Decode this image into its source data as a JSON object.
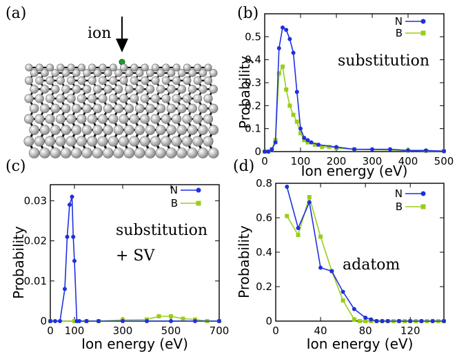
{
  "panel_labels": {
    "a": "(a)",
    "b": "(b)",
    "c": "(c)",
    "d": "(d)"
  },
  "illustration": {
    "ion_label": "ion"
  },
  "colors": {
    "N": "#1f2fe0",
    "B": "#9acd1a"
  },
  "chart_data": [
    {
      "id": "b",
      "type": "line",
      "xlabel": "Ion energy (eV)",
      "ylabel": "Probability",
      "annotation": [
        "substitution"
      ],
      "xlim": [
        0,
        500
      ],
      "ylim": [
        0,
        0.6
      ],
      "xticks": [
        0,
        100,
        200,
        300,
        400,
        500
      ],
      "yticks": [
        0,
        0.1,
        0.2,
        0.3,
        0.4,
        0.5
      ],
      "ytick_labels": [
        "0",
        "0.1",
        "0.2",
        "0.3",
        "0.4",
        "0.5"
      ],
      "legend": "top-right",
      "series": [
        {
          "name": "N",
          "color": "#1f2fe0",
          "marker": "circle",
          "x": [
            0,
            10,
            20,
            30,
            40,
            50,
            60,
            70,
            80,
            90,
            100,
            110,
            120,
            130,
            150,
            200,
            250,
            300,
            350,
            400,
            450,
            500
          ],
          "y": [
            0,
            0,
            0.01,
            0.04,
            0.45,
            0.54,
            0.53,
            0.49,
            0.43,
            0.26,
            0.1,
            0.06,
            0.05,
            0.04,
            0.03,
            0.02,
            0.01,
            0.01,
            0.01,
            0.005,
            0.005,
            0.002
          ]
        },
        {
          "name": "B",
          "color": "#9acd1a",
          "marker": "square",
          "x": [
            0,
            10,
            20,
            30,
            40,
            50,
            60,
            70,
            80,
            90,
            100,
            110,
            120,
            140,
            160,
            180,
            200,
            250,
            400,
            450,
            500
          ],
          "y": [
            0,
            0,
            0.01,
            0.05,
            0.34,
            0.37,
            0.27,
            0.2,
            0.16,
            0.13,
            0.08,
            0.05,
            0.04,
            0.03,
            0.02,
            0.02,
            0.015,
            0.01,
            0.005,
            0.003,
            0.002
          ]
        }
      ]
    },
    {
      "id": "c",
      "type": "line",
      "xlabel": "Ion energy (eV)",
      "ylabel": "Probability",
      "annotation": [
        "substitution",
        "+ SV"
      ],
      "xlim": [
        0,
        700
      ],
      "ylim": [
        0,
        0.034
      ],
      "xticks": [
        0,
        100,
        300,
        500,
        700
      ],
      "xtick_labels": [
        "0",
        "100",
        "300",
        "500",
        "700"
      ],
      "yticks": [
        0,
        0.01,
        0.02,
        0.03
      ],
      "ytick_labels": [
        "0",
        "0.01",
        "0.02",
        "0.03"
      ],
      "legend": "top-right",
      "series": [
        {
          "name": "N",
          "color": "#1f2fe0",
          "marker": "circle",
          "x": [
            0,
            20,
            40,
            60,
            70,
            80,
            90,
            95,
            100,
            110,
            120,
            150,
            200,
            300,
            400,
            500,
            600,
            700
          ],
          "y": [
            0,
            0,
            0,
            0.008,
            0.021,
            0.029,
            0.031,
            0.021,
            0.015,
            0.0,
            0,
            0,
            0,
            0,
            0,
            0,
            0,
            0
          ],
          "note": "N points at 200-700 lie at zero"
        },
        {
          "name": "B",
          "color": "#9acd1a",
          "marker": "square",
          "x": [
            0,
            100,
            150,
            200,
            300,
            400,
            450,
            500,
            550,
            600,
            650,
            700
          ],
          "y": [
            0,
            0,
            0,
            0,
            0.0003,
            0.0004,
            0.0012,
            0.0012,
            0.0006,
            0.0004,
            0,
            0
          ]
        }
      ]
    },
    {
      "id": "d",
      "type": "line",
      "xlabel": "Ion energy (eV)",
      "ylabel": "Probability",
      "annotation": [
        "adatom"
      ],
      "xlim": [
        0,
        150
      ],
      "ylim": [
        0,
        0.8
      ],
      "xticks": [
        0,
        40,
        80,
        120
      ],
      "yticks": [
        0,
        0.2,
        0.4,
        0.6,
        0.8
      ],
      "ytick_labels": [
        "0",
        "0.2",
        "0.4",
        "0.6",
        "0.8"
      ],
      "legend": "top-right",
      "series": [
        {
          "name": "N",
          "color": "#1f2fe0",
          "marker": "circle",
          "x": [
            10,
            20,
            30,
            40,
            50,
            60,
            70,
            80,
            85,
            90,
            95,
            100,
            110,
            120,
            130,
            140,
            150
          ],
          "y": [
            0.78,
            0.54,
            0.69,
            0.31,
            0.29,
            0.17,
            0.07,
            0.02,
            0.01,
            0,
            0,
            0,
            0,
            0,
            0,
            0,
            0
          ]
        },
        {
          "name": "B",
          "color": "#9acd1a",
          "marker": "square",
          "x": [
            10,
            20,
            30,
            40,
            50,
            60,
            70,
            75,
            80,
            85,
            90,
            95,
            100,
            105,
            110,
            115,
            120,
            125,
            130,
            135,
            140,
            145,
            150
          ],
          "y": [
            0.61,
            0.5,
            0.72,
            0.49,
            0.29,
            0.12,
            0.01,
            0,
            0,
            0,
            0,
            0,
            0,
            0,
            0,
            0,
            0,
            0,
            0,
            0,
            0,
            0,
            0
          ]
        }
      ]
    }
  ]
}
